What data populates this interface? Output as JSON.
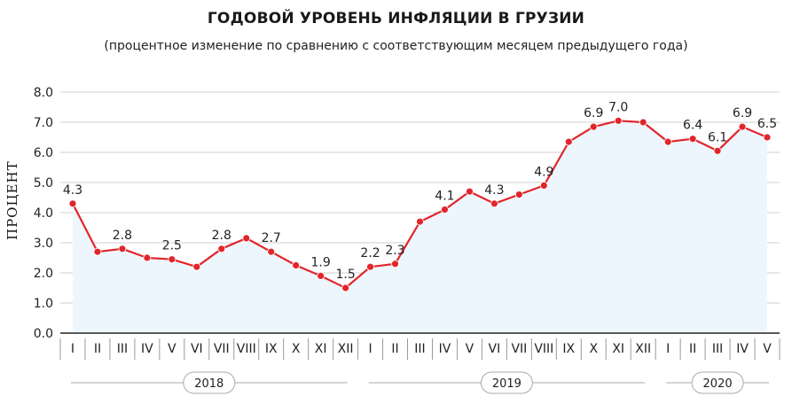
{
  "chart_data": {
    "type": "area",
    "title": "ГОДОВОЙ УРОВЕНЬ ИНФЛЯЦИИ В ГРУЗИИ",
    "subtitle": "(процентное изменение по сравнению с соответствующим месяцем предыдущего года)",
    "ylabel": "ПРОЦЕНТ",
    "ylim": [
      0,
      8
    ],
    "yticks": [
      "0.0",
      "1.0",
      "2.0",
      "3.0",
      "4.0",
      "5.0",
      "6.0",
      "7.0",
      "8.0"
    ],
    "categories": [
      "I",
      "II",
      "III",
      "IV",
      "V",
      "VI",
      "VII",
      "VIII",
      "IX",
      "X",
      "XI",
      "XII",
      "I",
      "II",
      "III",
      "IV",
      "V",
      "VI",
      "VII",
      "VIII",
      "IX",
      "X",
      "XI",
      "XII",
      "I",
      "II",
      "III",
      "IV",
      "V"
    ],
    "values": [
      4.3,
      2.7,
      2.8,
      2.5,
      2.45,
      2.2,
      2.8,
      3.15,
      2.7,
      2.25,
      1.9,
      1.5,
      2.2,
      2.3,
      3.7,
      4.1,
      4.7,
      4.3,
      4.6,
      4.9,
      6.35,
      6.85,
      7.05,
      7.0,
      6.35,
      6.45,
      6.05,
      6.85,
      6.5
    ],
    "data_labels": [
      {
        "index": 0,
        "text": "4.3"
      },
      {
        "index": 2,
        "text": "2.8"
      },
      {
        "index": 4,
        "text": "2.5"
      },
      {
        "index": 6,
        "text": "2.8"
      },
      {
        "index": 8,
        "text": "2.7"
      },
      {
        "index": 10,
        "text": "1.9"
      },
      {
        "index": 11,
        "text": "1.5"
      },
      {
        "index": 12,
        "text": "2.2"
      },
      {
        "index": 13,
        "text": "2.3"
      },
      {
        "index": 15,
        "text": "4.1"
      },
      {
        "index": 17,
        "text": "4.3"
      },
      {
        "index": 19,
        "text": "4.9"
      },
      {
        "index": 21,
        "text": "6.9"
      },
      {
        "index": 22,
        "text": "7.0"
      },
      {
        "index": 25,
        "text": "6.4"
      },
      {
        "index": 26,
        "text": "6.1"
      },
      {
        "index": 27,
        "text": "6.9"
      },
      {
        "index": 28,
        "text": "6.5"
      }
    ],
    "years": [
      {
        "label": "2018",
        "first": 0,
        "last": 11
      },
      {
        "label": "2019",
        "first": 12,
        "last": 23
      },
      {
        "label": "2020",
        "first": 24,
        "last": 28
      }
    ],
    "grid": true,
    "colors": {
      "line": "#e2252b",
      "fill": "#eef6fd",
      "grid": "#cfcfcf",
      "axis": "#222222"
    }
  }
}
